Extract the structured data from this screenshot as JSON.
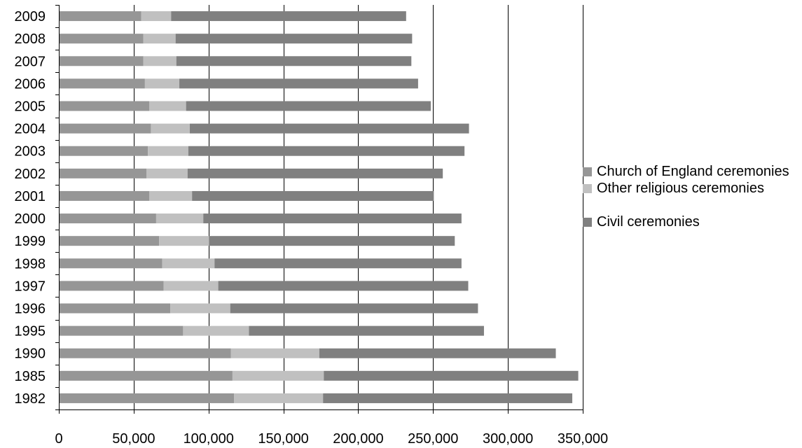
{
  "chart_data": {
    "type": "bar",
    "orientation": "horizontal",
    "stacked": true,
    "title": "",
    "xlabel": "",
    "ylabel": "",
    "xlim": [
      0,
      350000
    ],
    "x_ticks": [
      "0",
      "50,000",
      "100,000",
      "150,000",
      "200,000",
      "250,000",
      "300,000",
      "350,000"
    ],
    "grid": "vertical at 50,000 steps",
    "legend_position": "right",
    "categories": [
      "2009",
      "2008",
      "2007",
      "2006",
      "2005",
      "2004",
      "2003",
      "2002",
      "2001",
      "2000",
      "1999",
      "1998",
      "1997",
      "1996",
      "1995",
      "1990",
      "1985",
      "1982"
    ],
    "series": [
      {
        "name": "Church of England ceremonies",
        "color": "#969696",
        "values": [
          55000,
          56500,
          56500,
          57500,
          60500,
          61500,
          59500,
          58500,
          60500,
          65000,
          67000,
          69000,
          70000,
          74500,
          83000,
          115000,
          116000,
          117000
        ]
      },
      {
        "name": "Other religious ceremonies",
        "color": "#c0c0c0",
        "values": [
          20000,
          21500,
          22000,
          23000,
          24500,
          26000,
          27000,
          27500,
          28500,
          31500,
          33500,
          35000,
          36500,
          40000,
          44000,
          59000,
          61000,
          59500
        ]
      },
      {
        "name": "Civil ceremonies",
        "color": "#808080",
        "values": [
          157000,
          158000,
          157000,
          159500,
          163500,
          186500,
          184500,
          170500,
          161500,
          172500,
          164000,
          165000,
          167000,
          165500,
          157000,
          158000,
          170000,
          166500
        ]
      }
    ]
  }
}
